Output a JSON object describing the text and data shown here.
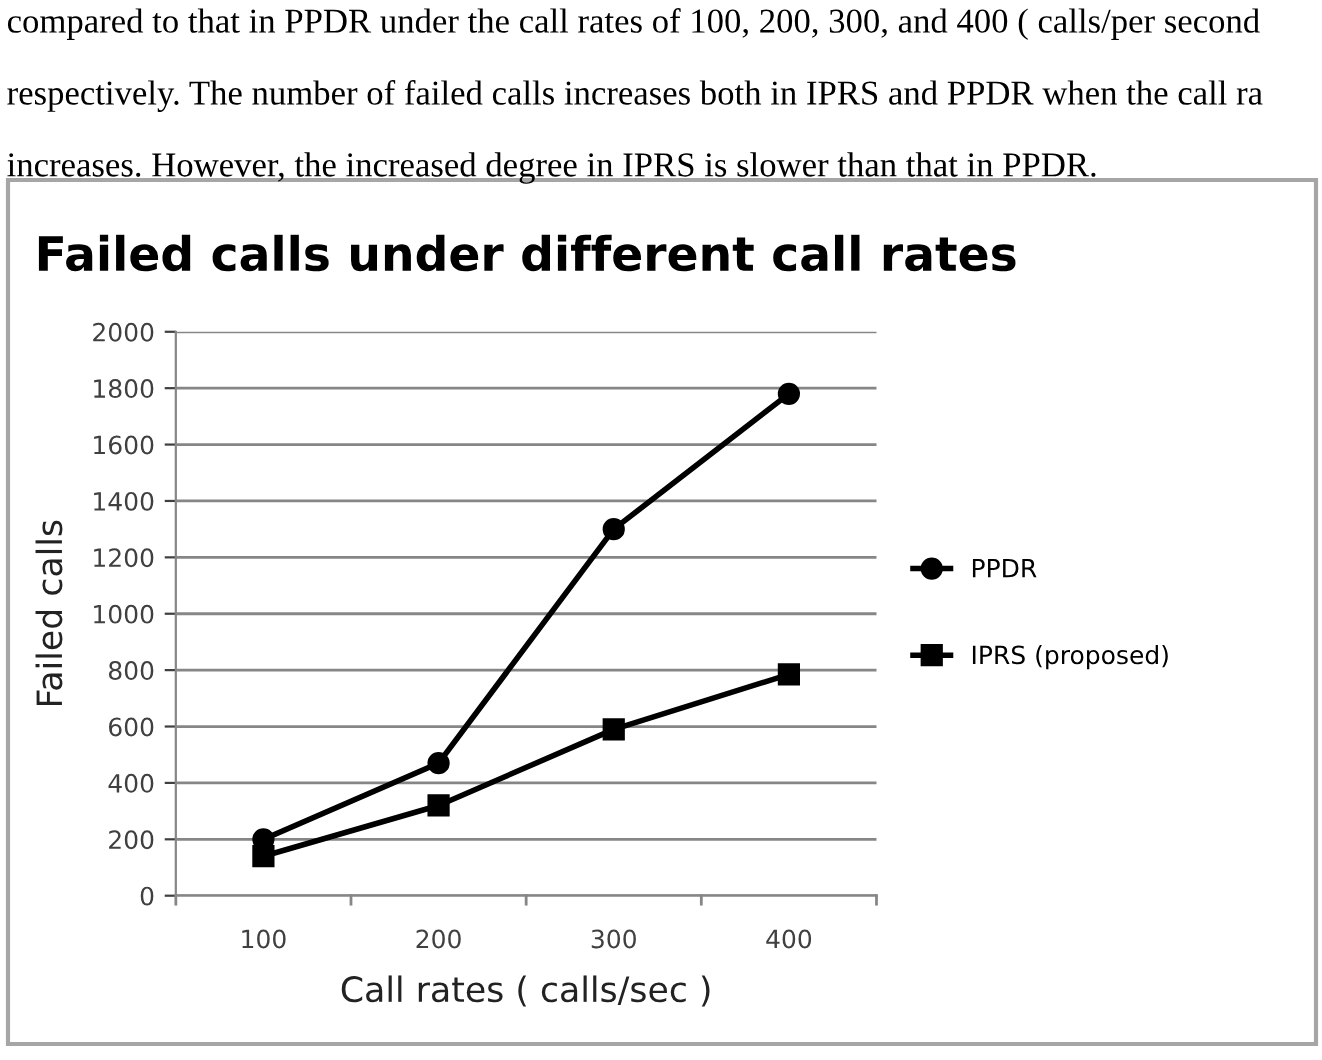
{
  "chart_data": {
    "type": "line",
    "title": "Failed calls under different call rates",
    "xlabel": "Call rates ( calls/sec )",
    "ylabel": "Failed calls",
    "categories": [
      "100",
      "200",
      "300",
      "400"
    ],
    "series": [
      {
        "name": "PPDR",
        "color": "#000000",
        "marker": "circle",
        "values": [
          200,
          470,
          1300,
          1780
        ]
      },
      {
        "name": "IPRS (proposed)",
        "color": "#000000",
        "marker": "square",
        "values": [
          140,
          320,
          590,
          785
        ]
      }
    ],
    "ylim": [
      0,
      2000
    ],
    "yticks": [
      0,
      200,
      400,
      600,
      800,
      1000,
      1200,
      1400,
      1600,
      1800,
      2000
    ],
    "grid": "y",
    "legend": "right",
    "line_style": "solid",
    "annotations": [
      "compared to that in PPDR under the call rates of 100, 200, 300, and 400 ( calls/per second",
      "respectively. The number of failed calls increases both in IPRS and PPDR when the call ra",
      "increases. However, the increased degree in IPRS is slower than that in PPDR."
    ]
  }
}
